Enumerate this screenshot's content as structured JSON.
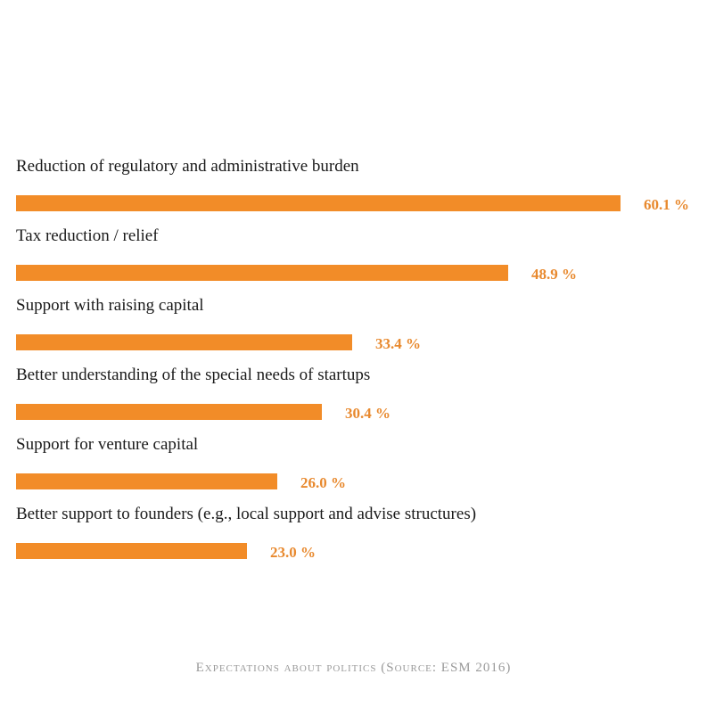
{
  "chart_data": {
    "type": "bar",
    "orientation": "horizontal",
    "categories": [
      "Reduction of regulatory and administrative burden",
      "Tax reduction / relief",
      "Support with raising capital",
      "Better understanding of the special needs of startups",
      "Support for venture capital",
      "Better support to founders (e.g., local support and advise structures)"
    ],
    "values": [
      60.1,
      48.9,
      33.4,
      30.4,
      26.0,
      23.0
    ],
    "value_labels": [
      "60.1 %",
      "48.9 %",
      "33.4 %",
      "30.4 %",
      "26.0 %",
      "23.0 %"
    ],
    "xlim": [
      0,
      60.1
    ],
    "grid": false,
    "legend": "none",
    "bar_color": "#F28C28",
    "label_color": "#E8892E",
    "caption": "Expectations about politics (Source: ESM 2016)"
  }
}
